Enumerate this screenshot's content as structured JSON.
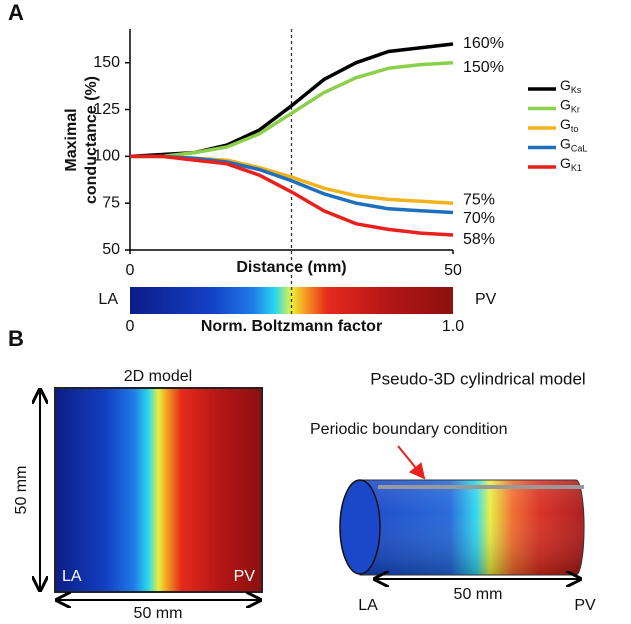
{
  "chart_data": {
    "type": "line",
    "panel_label": "A",
    "ylabel_lines": [
      "Maximal",
      "conductance (%)"
    ],
    "xlabel": "Distance (mm)",
    "x": [
      0,
      5,
      10,
      15,
      20,
      25,
      30,
      35,
      40,
      45,
      50
    ],
    "series": [
      {
        "name": "GKs",
        "color": "#000000",
        "values": [
          100,
          101,
          102,
          106,
          114,
          127,
          141,
          150,
          156,
          158,
          160
        ],
        "end_label": "160%"
      },
      {
        "name": "GKr",
        "color": "#8ccf4a",
        "values": [
          100,
          100,
          102,
          105,
          112,
          123,
          134,
          142,
          147,
          149,
          150
        ],
        "end_label": "150%"
      },
      {
        "name": "Gto",
        "color": "#f2b21b",
        "values": [
          100,
          100,
          99,
          98,
          94,
          89,
          83,
          79,
          77,
          76,
          75
        ],
        "end_label": "75%"
      },
      {
        "name": "GCaL",
        "color": "#1f6fbf",
        "values": [
          100,
          100,
          99,
          97,
          93,
          87,
          80,
          75,
          72,
          71,
          70
        ],
        "end_label": "70%"
      },
      {
        "name": "GK1",
        "color": "#e8211d",
        "values": [
          100,
          100,
          98,
          96,
          90,
          81,
          71,
          64,
          61,
          59,
          58
        ],
        "end_label": "58%"
      }
    ],
    "xlim": [
      0,
      50
    ],
    "xticks": [
      0,
      50
    ],
    "ylim": [
      50,
      168
    ],
    "yticks": [
      50,
      75,
      100,
      125,
      150
    ],
    "vline": 25,
    "legend": "right",
    "colorbar": {
      "left_label": "LA",
      "right_label": "PV",
      "label": "Norm. Boltzmann factor",
      "ticks": [
        0,
        {
          "value": 1,
          "label": "1.0"
        }
      ]
    }
  },
  "panel_b": {
    "panel_label": "B",
    "model_2d": {
      "title": "2D model",
      "side_label": "50 mm",
      "bottom_label": "50 mm",
      "left_label": "LA",
      "right_label": "PV"
    },
    "model_3d": {
      "title": "Pseudo-3D cylindrical model",
      "annotation": "Periodic boundary condition",
      "left_label": "LA",
      "length_label": "50 mm",
      "right_label": "PV"
    }
  }
}
